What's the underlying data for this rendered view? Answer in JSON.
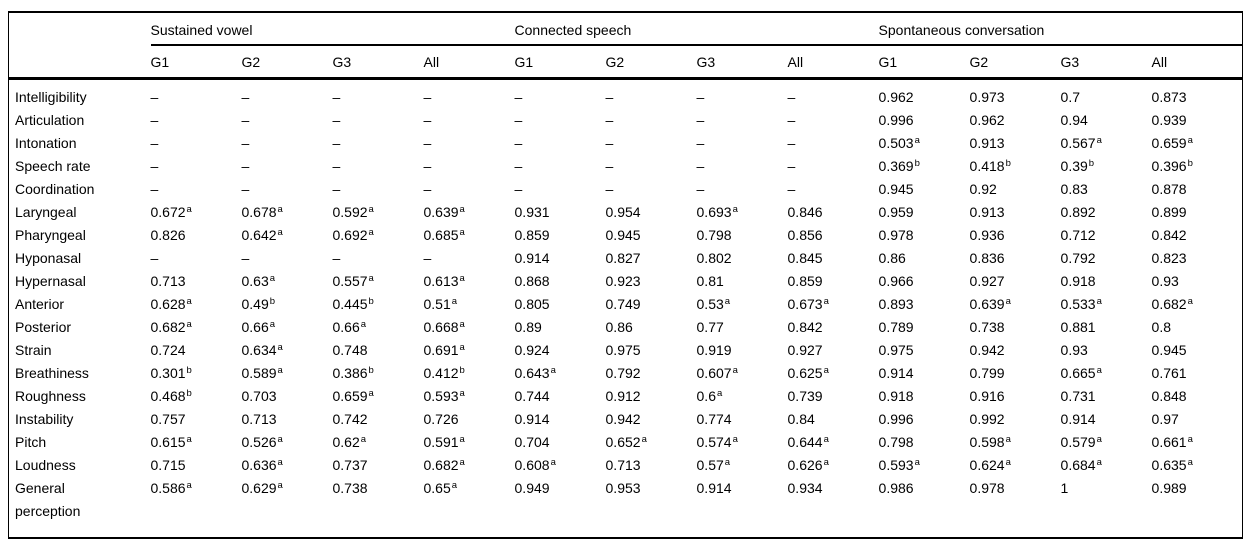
{
  "page": {
    "background_color": "#ffffff",
    "text_color": "#000000",
    "rule_color": "#000000",
    "missing_value_symbol": "–",
    "superscript_markers": [
      "a",
      "b"
    ]
  },
  "table": {
    "corner_label": "",
    "groups": [
      {
        "label": "Sustained vowel"
      },
      {
        "label": "Connected speech"
      },
      {
        "label": "Spontaneous conversation"
      }
    ],
    "subcolumns": [
      "G1",
      "G2",
      "G3",
      "All"
    ],
    "rows": [
      {
        "label": "Intelligibility",
        "cells": [
          "–",
          "–",
          "–",
          "–",
          "–",
          "–",
          "–",
          "–",
          "0.962",
          "0.973",
          "0.7",
          "0.873"
        ]
      },
      {
        "label": "Articulation",
        "cells": [
          "–",
          "–",
          "–",
          "–",
          "–",
          "–",
          "–",
          "–",
          "0.996",
          "0.962",
          "0.94",
          "0.939"
        ]
      },
      {
        "label": "Intonation",
        "cells": [
          "–",
          "–",
          "–",
          "–",
          "–",
          "–",
          "–",
          "–",
          "0.503^a",
          "0.913",
          "0.567^a",
          "0.659^a"
        ]
      },
      {
        "label": "Speech rate",
        "cells": [
          "–",
          "–",
          "–",
          "–",
          "–",
          "–",
          "–",
          "–",
          "0.369^b",
          "0.418^b",
          "0.39^b",
          "0.396^b"
        ]
      },
      {
        "label": "Coordination",
        "cells": [
          "–",
          "–",
          "–",
          "–",
          "–",
          "–",
          "–",
          "–",
          "0.945",
          "0.92",
          "0.83",
          "0.878"
        ]
      },
      {
        "label": "Laryngeal",
        "cells": [
          "0.672^a",
          "0.678^a",
          "0.592^a",
          "0.639^a",
          "0.931",
          "0.954",
          "0.693^a",
          "0.846",
          "0.959",
          "0.913",
          "0.892",
          "0.899"
        ]
      },
      {
        "label": "Pharyngeal",
        "cells": [
          "0.826",
          "0.642^a",
          "0.692^a",
          "0.685^a",
          "0.859",
          "0.945",
          "0.798",
          "0.856",
          "0.978",
          "0.936",
          "0.712",
          "0.842"
        ]
      },
      {
        "label": "Hyponasal",
        "cells": [
          "–",
          "–",
          "–",
          "–",
          "0.914",
          "0.827",
          "0.802",
          "0.845",
          "0.86",
          "0.836",
          "0.792",
          "0.823"
        ]
      },
      {
        "label": "Hypernasal",
        "cells": [
          "0.713",
          "0.63^a",
          "0.557^a",
          "0.613^a",
          "0.868",
          "0.923",
          "0.81",
          "0.859",
          "0.966",
          "0.927",
          "0.918",
          "0.93"
        ]
      },
      {
        "label": "Anterior",
        "cells": [
          "0.628^a",
          "0.49^b",
          "0.445^b",
          "0.51^a",
          "0.805",
          "0.749",
          "0.53^a",
          "0.673^a",
          "0.893",
          "0.639^a",
          "0.533^a",
          "0.682^a"
        ]
      },
      {
        "label": "Posterior",
        "cells": [
          "0.682^a",
          "0.66^a",
          "0.66^a",
          "0.668^a",
          "0.89",
          "0.86",
          "0.77",
          "0.842",
          "0.789",
          "0.738",
          "0.881",
          "0.8"
        ]
      },
      {
        "label": "Strain",
        "cells": [
          "0.724",
          "0.634^a",
          "0.748",
          "0.691^a",
          "0.924",
          "0.975",
          "0.919",
          "0.927",
          "0.975",
          "0.942",
          "0.93",
          "0.945"
        ]
      },
      {
        "label": "Breathiness",
        "cells": [
          "0.301^b",
          "0.589^a",
          "0.386^b",
          "0.412^b",
          "0.643^a",
          "0.792",
          "0.607^a",
          "0.625^a",
          "0.914",
          "0.799",
          "0.665^a",
          "0.761"
        ]
      },
      {
        "label": "Roughness",
        "cells": [
          "0.468^b",
          "0.703",
          "0.659^a",
          "0.593^a",
          "0.744",
          "0.912",
          "0.6^a",
          "0.739",
          "0.918",
          "0.916",
          "0.731",
          "0.848"
        ]
      },
      {
        "label": "Instability",
        "cells": [
          "0.757",
          "0.713",
          "0.742",
          "0.726",
          "0.914",
          "0.942",
          "0.774",
          "0.84",
          "0.996",
          "0.992",
          "0.914",
          "0.97"
        ]
      },
      {
        "label": "Pitch",
        "cells": [
          "0.615^a",
          "0.526^a",
          "0.62^a",
          "0.591^a",
          "0.704",
          "0.652^a",
          "0.574^a",
          "0.644^a",
          "0.798",
          "0.598^a",
          "0.579^a",
          "0.661^a"
        ]
      },
      {
        "label": "Loudness",
        "cells": [
          "0.715",
          "0.636^a",
          "0.737",
          "0.682^a",
          "0.608^a",
          "0.713",
          "0.57^a",
          "0.626^a",
          "0.593^a",
          "0.624^a",
          "0.684^a",
          "0.635^a"
        ]
      },
      {
        "label": "General\nperception",
        "cells": [
          "0.586^a",
          "0.629^a",
          "0.738",
          "0.65^a",
          "0.949",
          "0.953",
          "0.914",
          "0.934",
          "0.986",
          "0.978",
          "1",
          "0.989"
        ]
      }
    ]
  }
}
